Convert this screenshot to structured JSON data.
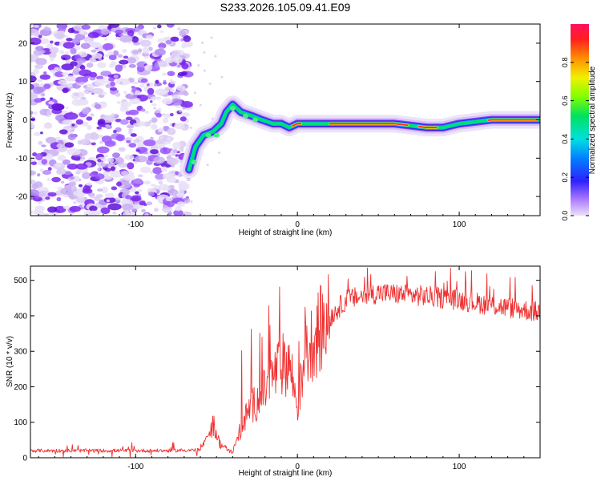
{
  "title": "S233.2026.105.09.41.E09",
  "colors": {
    "snr_line": "#f03030",
    "frame": "#000000",
    "colorbar_stops": [
      "#d8c8f0",
      "#9a50ff",
      "#3020ff",
      "#0080ff",
      "#00e0e0",
      "#00e060",
      "#80ff00",
      "#f0f000",
      "#ff9000",
      "#ff2020",
      "#ff1060"
    ]
  },
  "chart_data": [
    {
      "type": "heatmap",
      "name": "spectrogram",
      "xlabel": "Height of straight line (km)",
      "ylabel": "Frequency (Hz)",
      "xlim": [
        -165,
        150
      ],
      "ylim": [
        -25,
        25
      ],
      "xticks": [
        -100,
        0,
        100
      ],
      "yticks": [
        20,
        10,
        0,
        -10,
        -20
      ],
      "colorbar": {
        "label": "Normalized spectral amplitude",
        "range": [
          0,
          1
        ],
        "ticks": [
          0.0,
          0.2,
          0.4,
          0.6,
          0.8
        ]
      },
      "ridge": [
        [
          -67,
          -13
        ],
        [
          -63,
          -7
        ],
        [
          -58,
          -4
        ],
        [
          -52,
          -3
        ],
        [
          -47,
          -1
        ],
        [
          -44,
          2
        ],
        [
          -40,
          4
        ],
        [
          -35,
          2
        ],
        [
          -28,
          1
        ],
        [
          -22,
          0
        ],
        [
          -15,
          -1
        ],
        [
          -10,
          -1
        ],
        [
          -5,
          -2
        ],
        [
          0,
          -1
        ],
        [
          10,
          -1
        ],
        [
          20,
          -1
        ],
        [
          40,
          -1
        ],
        [
          60,
          -1
        ],
        [
          80,
          -2
        ],
        [
          90,
          -2
        ],
        [
          100,
          -1
        ],
        [
          120,
          0
        ],
        [
          150,
          0
        ]
      ]
    },
    {
      "type": "line",
      "name": "snr",
      "xlabel": "Height of straight line (km)",
      "ylabel": "SNR (10 * v/v)",
      "xlim": [
        -165,
        150
      ],
      "ylim": [
        0,
        540
      ],
      "xticks": [
        -100,
        0,
        100
      ],
      "yticks": [
        0,
        100,
        200,
        300,
        400,
        500
      ],
      "envelope": [
        [
          -165,
          20
        ],
        [
          -120,
          20
        ],
        [
          -80,
          20
        ],
        [
          -60,
          22
        ],
        [
          -52,
          95
        ],
        [
          -48,
          40
        ],
        [
          -44,
          25
        ],
        [
          -40,
          15
        ],
        [
          -36,
          70
        ],
        [
          -30,
          135
        ],
        [
          -22,
          175
        ],
        [
          -15,
          230
        ],
        [
          -10,
          260
        ],
        [
          -5,
          270
        ],
        [
          0,
          145
        ],
        [
          5,
          290
        ],
        [
          10,
          335
        ],
        [
          20,
          395
        ],
        [
          30,
          445
        ],
        [
          50,
          465
        ],
        [
          80,
          455
        ],
        [
          100,
          445
        ],
        [
          120,
          430
        ],
        [
          150,
          410
        ]
      ]
    }
  ]
}
